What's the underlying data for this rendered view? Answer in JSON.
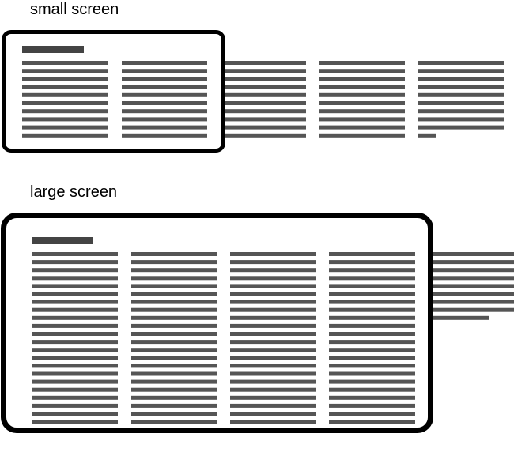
{
  "labels": {
    "small": "small screen",
    "large": "large screen"
  },
  "colors": {
    "frame": "#000000",
    "text_line": "#555555",
    "heading_bar": "#444444"
  },
  "small_screen": {
    "columns": 5,
    "visible_columns": 2,
    "lines_per_column": [
      10,
      10,
      10,
      10,
      10
    ],
    "last_line_fraction": 0.2
  },
  "large_screen": {
    "columns": 5,
    "visible_columns": 4,
    "lines_per_column": [
      22,
      22,
      22,
      22,
      9
    ],
    "last_line_fraction": 0.65
  }
}
